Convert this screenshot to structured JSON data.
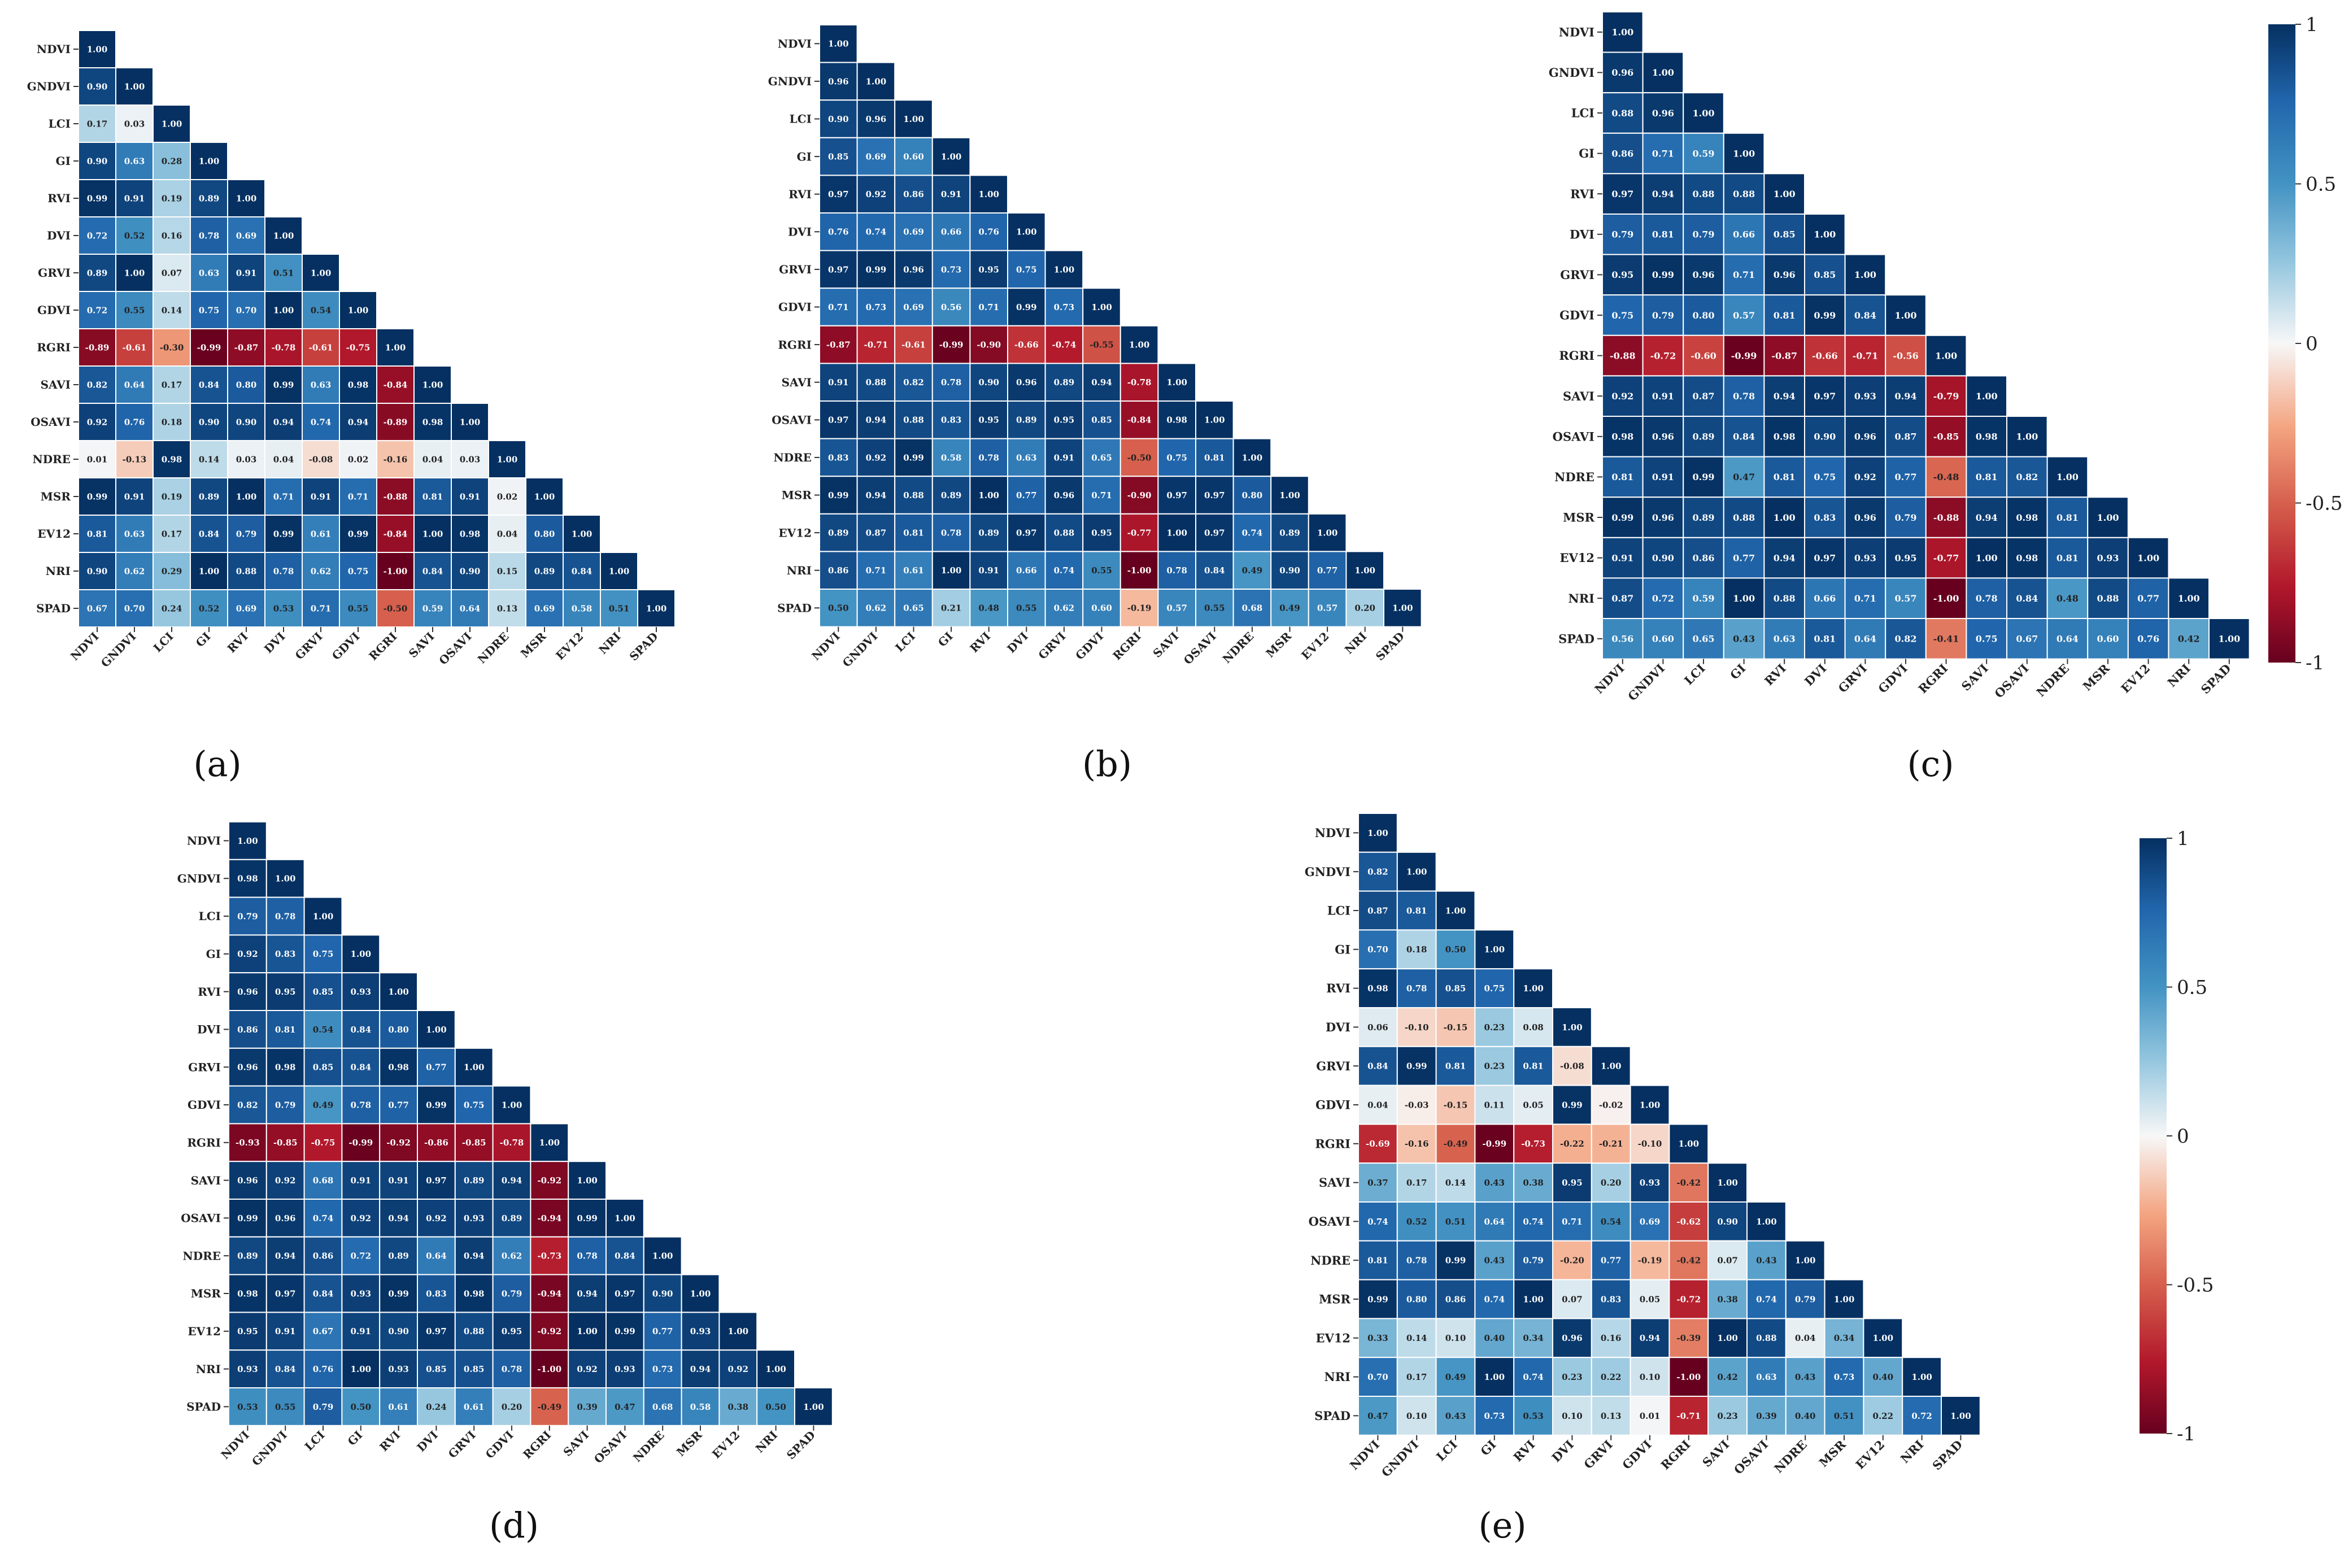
{
  "figure": {
    "variables": [
      "NDVI",
      "GNDVI",
      "LCI",
      "GI",
      "RVI",
      "DVI",
      "GRVI",
      "GDVI",
      "RGRI",
      "SAVI",
      "OSAVI",
      "NDRE",
      "MSR",
      "EV12",
      "NRI",
      "SPAD"
    ],
    "colorbar_ticks": [
      "1",
      "0.5",
      "0",
      "-0.5",
      "-1"
    ],
    "colors": {
      "neg": "#67001f",
      "negMid": "#d6604d",
      "neutral": "#f7f7f7",
      "posMid": "#4393c3",
      "pos": "#053061"
    }
  },
  "chart_data": [
    {
      "type": "heatmap",
      "panel_label": "(a)",
      "value_range": [
        -1,
        1
      ],
      "rows": [
        [
          1.0
        ],
        [
          0.9,
          1.0
        ],
        [
          0.17,
          0.03,
          1.0
        ],
        [
          0.9,
          0.63,
          0.28,
          1.0
        ],
        [
          0.99,
          0.91,
          0.19,
          0.89,
          1.0
        ],
        [
          0.72,
          0.52,
          0.16,
          0.78,
          0.69,
          1.0
        ],
        [
          0.89,
          1.0,
          0.07,
          0.63,
          0.91,
          0.51,
          1.0
        ],
        [
          0.72,
          0.55,
          0.14,
          0.75,
          0.7,
          1.0,
          0.54,
          1.0
        ],
        [
          -0.89,
          -0.61,
          -0.3,
          -0.99,
          -0.87,
          -0.78,
          -0.61,
          -0.75,
          1.0
        ],
        [
          0.82,
          0.64,
          0.17,
          0.84,
          0.8,
          0.99,
          0.63,
          0.98,
          -0.84,
          1.0
        ],
        [
          0.92,
          0.76,
          0.18,
          0.9,
          0.9,
          0.94,
          0.74,
          0.94,
          -0.89,
          0.98,
          1.0
        ],
        [
          0.01,
          -0.13,
          0.98,
          0.14,
          0.03,
          0.04,
          -0.08,
          0.02,
          -0.16,
          0.04,
          0.03,
          1.0
        ],
        [
          0.99,
          0.91,
          0.19,
          0.89,
          1.0,
          0.71,
          0.91,
          0.71,
          -0.88,
          0.81,
          0.91,
          0.02,
          1.0
        ],
        [
          0.81,
          0.63,
          0.17,
          0.84,
          0.79,
          0.99,
          0.61,
          0.99,
          -0.84,
          1.0,
          0.98,
          0.04,
          0.8,
          1.0
        ],
        [
          0.9,
          0.62,
          0.29,
          1.0,
          0.88,
          0.78,
          0.62,
          0.75,
          -1.0,
          0.84,
          0.9,
          0.15,
          0.89,
          0.84,
          1.0
        ],
        [
          0.67,
          0.7,
          0.24,
          0.52,
          0.69,
          0.53,
          0.71,
          0.55,
          -0.5,
          0.59,
          0.64,
          0.13,
          0.69,
          0.58,
          0.51,
          1.0
        ]
      ]
    },
    {
      "type": "heatmap",
      "panel_label": "(b)",
      "value_range": [
        -1,
        1
      ],
      "rows": [
        [
          1.0
        ],
        [
          0.96,
          1.0
        ],
        [
          0.9,
          0.96,
          1.0
        ],
        [
          0.85,
          0.69,
          0.6,
          1.0
        ],
        [
          0.97,
          0.92,
          0.86,
          0.91,
          1.0
        ],
        [
          0.76,
          0.74,
          0.69,
          0.66,
          0.76,
          1.0
        ],
        [
          0.97,
          0.99,
          0.96,
          0.73,
          0.95,
          0.75,
          1.0
        ],
        [
          0.71,
          0.73,
          0.69,
          0.56,
          0.71,
          0.99,
          0.73,
          1.0
        ],
        [
          -0.87,
          -0.71,
          -0.61,
          -0.99,
          -0.9,
          -0.66,
          -0.74,
          -0.55,
          1.0
        ],
        [
          0.91,
          0.88,
          0.82,
          0.78,
          0.9,
          0.96,
          0.89,
          0.94,
          -0.78,
          1.0
        ],
        [
          0.97,
          0.94,
          0.88,
          0.83,
          0.95,
          0.89,
          0.95,
          0.85,
          -0.84,
          0.98,
          1.0
        ],
        [
          0.83,
          0.92,
          0.99,
          0.58,
          0.78,
          0.63,
          0.91,
          0.65,
          -0.5,
          0.75,
          0.81,
          1.0
        ],
        [
          0.99,
          0.94,
          0.88,
          0.89,
          1.0,
          0.77,
          0.96,
          0.71,
          -0.9,
          0.97,
          0.97,
          0.8,
          1.0
        ],
        [
          0.89,
          0.87,
          0.81,
          0.78,
          0.89,
          0.97,
          0.88,
          0.95,
          -0.77,
          1.0,
          0.97,
          0.74,
          0.89,
          1.0
        ],
        [
          0.86,
          0.71,
          0.61,
          1.0,
          0.91,
          0.66,
          0.74,
          0.55,
          -1.0,
          0.78,
          0.84,
          0.49,
          0.9,
          0.77,
          1.0
        ],
        [
          0.5,
          0.62,
          0.65,
          0.21,
          0.48,
          0.55,
          0.62,
          0.6,
          -0.19,
          0.57,
          0.55,
          0.68,
          0.49,
          0.57,
          0.2,
          1.0
        ]
      ]
    },
    {
      "type": "heatmap",
      "panel_label": "(c)",
      "value_range": [
        -1,
        1
      ],
      "rows": [
        [
          1.0
        ],
        [
          0.96,
          1.0
        ],
        [
          0.88,
          0.96,
          1.0
        ],
        [
          0.86,
          0.71,
          0.59,
          1.0
        ],
        [
          0.97,
          0.94,
          0.88,
          0.88,
          1.0
        ],
        [
          0.79,
          0.81,
          0.79,
          0.66,
          0.85,
          1.0
        ],
        [
          0.95,
          0.99,
          0.96,
          0.71,
          0.96,
          0.85,
          1.0
        ],
        [
          0.75,
          0.79,
          0.8,
          0.57,
          0.81,
          0.99,
          0.84,
          1.0
        ],
        [
          -0.88,
          -0.72,
          -0.6,
          -0.99,
          -0.87,
          -0.66,
          -0.71,
          -0.56,
          1.0
        ],
        [
          0.92,
          0.91,
          0.87,
          0.78,
          0.94,
          0.97,
          0.93,
          0.94,
          -0.79,
          1.0
        ],
        [
          0.98,
          0.96,
          0.89,
          0.84,
          0.98,
          0.9,
          0.96,
          0.87,
          -0.85,
          0.98,
          1.0
        ],
        [
          0.81,
          0.91,
          0.99,
          0.47,
          0.81,
          0.75,
          0.92,
          0.77,
          -0.48,
          0.81,
          0.82,
          1.0
        ],
        [
          0.99,
          0.96,
          0.89,
          0.88,
          1.0,
          0.83,
          0.96,
          0.79,
          -0.88,
          0.94,
          0.98,
          0.81,
          1.0
        ],
        [
          0.91,
          0.9,
          0.86,
          0.77,
          0.94,
          0.97,
          0.93,
          0.95,
          -0.77,
          1.0,
          0.98,
          0.81,
          0.93,
          1.0
        ],
        [
          0.87,
          0.72,
          0.59,
          1.0,
          0.88,
          0.66,
          0.71,
          0.57,
          -1.0,
          0.78,
          0.84,
          0.48,
          0.88,
          0.77,
          1.0
        ],
        [
          0.56,
          0.6,
          0.65,
          0.43,
          0.63,
          0.81,
          0.64,
          0.82,
          -0.41,
          0.75,
          0.67,
          0.64,
          0.6,
          0.76,
          0.42,
          1.0
        ]
      ]
    },
    {
      "type": "heatmap",
      "panel_label": "(d)",
      "value_range": [
        -1,
        1
      ],
      "rows": [
        [
          1.0
        ],
        [
          0.98,
          1.0
        ],
        [
          0.79,
          0.78,
          1.0
        ],
        [
          0.92,
          0.83,
          0.75,
          1.0
        ],
        [
          0.96,
          0.95,
          0.85,
          0.93,
          1.0
        ],
        [
          0.86,
          0.81,
          0.54,
          0.84,
          0.8,
          1.0
        ],
        [
          0.96,
          0.98,
          0.85,
          0.84,
          0.98,
          0.77,
          1.0
        ],
        [
          0.82,
          0.79,
          0.49,
          0.78,
          0.77,
          0.99,
          0.75,
          1.0
        ],
        [
          -0.93,
          -0.85,
          -0.75,
          -0.99,
          -0.92,
          -0.86,
          -0.85,
          -0.78,
          1.0
        ],
        [
          0.96,
          0.92,
          0.68,
          0.91,
          0.91,
          0.97,
          0.89,
          0.94,
          -0.92,
          1.0
        ],
        [
          0.99,
          0.96,
          0.74,
          0.92,
          0.94,
          0.92,
          0.93,
          0.89,
          -0.94,
          0.99,
          1.0
        ],
        [
          0.89,
          0.94,
          0.86,
          0.72,
          0.89,
          0.64,
          0.94,
          0.62,
          -0.73,
          0.78,
          0.84,
          1.0
        ],
        [
          0.98,
          0.97,
          0.84,
          0.93,
          0.99,
          0.83,
          0.98,
          0.79,
          -0.94,
          0.94,
          0.97,
          0.9,
          1.0
        ],
        [
          0.95,
          0.91,
          0.67,
          0.91,
          0.9,
          0.97,
          0.88,
          0.95,
          -0.92,
          1.0,
          0.99,
          0.77,
          0.93,
          1.0
        ],
        [
          0.93,
          0.84,
          0.76,
          1.0,
          0.93,
          0.85,
          0.85,
          0.78,
          -1.0,
          0.92,
          0.93,
          0.73,
          0.94,
          0.92,
          1.0
        ],
        [
          0.53,
          0.55,
          0.79,
          0.5,
          0.61,
          0.24,
          0.61,
          0.2,
          -0.49,
          0.39,
          0.47,
          0.68,
          0.58,
          0.38,
          0.5,
          1.0
        ]
      ]
    },
    {
      "type": "heatmap",
      "panel_label": "(e)",
      "value_range": [
        -1,
        1
      ],
      "rows": [
        [
          1.0
        ],
        [
          0.82,
          1.0
        ],
        [
          0.87,
          0.81,
          1.0
        ],
        [
          0.7,
          0.18,
          0.5,
          1.0
        ],
        [
          0.98,
          0.78,
          0.85,
          0.75,
          1.0
        ],
        [
          0.06,
          -0.1,
          -0.15,
          0.23,
          0.08,
          1.0
        ],
        [
          0.84,
          0.99,
          0.81,
          0.23,
          0.81,
          -0.08,
          1.0
        ],
        [
          0.04,
          -0.03,
          -0.15,
          0.11,
          0.05,
          0.99,
          -0.02,
          1.0
        ],
        [
          -0.69,
          -0.16,
          -0.49,
          -0.99,
          -0.73,
          -0.22,
          -0.21,
          -0.1,
          1.0
        ],
        [
          0.37,
          0.17,
          0.14,
          0.43,
          0.38,
          0.95,
          0.2,
          0.93,
          -0.42,
          1.0
        ],
        [
          0.74,
          0.52,
          0.51,
          0.64,
          0.74,
          0.71,
          0.54,
          0.69,
          -0.62,
          0.9,
          1.0
        ],
        [
          0.81,
          0.78,
          0.99,
          0.43,
          0.79,
          -0.2,
          0.77,
          -0.19,
          -0.42,
          0.07,
          0.43,
          1.0
        ],
        [
          0.99,
          0.8,
          0.86,
          0.74,
          1.0,
          0.07,
          0.83,
          0.05,
          -0.72,
          0.38,
          0.74,
          0.79,
          1.0
        ],
        [
          0.33,
          0.14,
          0.1,
          0.4,
          0.34,
          0.96,
          0.16,
          0.94,
          -0.39,
          1.0,
          0.88,
          0.04,
          0.34,
          1.0
        ],
        [
          0.7,
          0.17,
          0.49,
          1.0,
          0.74,
          0.23,
          0.22,
          0.1,
          -1.0,
          0.42,
          0.63,
          0.43,
          0.73,
          0.4,
          1.0
        ],
        [
          0.47,
          0.1,
          0.43,
          0.73,
          0.53,
          0.1,
          0.13,
          0.01,
          -0.71,
          0.23,
          0.39,
          0.4,
          0.51,
          0.22,
          0.72,
          1.0
        ]
      ]
    }
  ]
}
